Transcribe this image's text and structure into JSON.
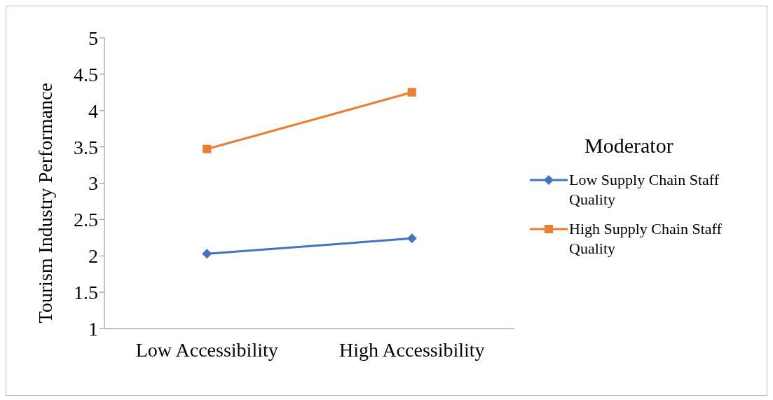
{
  "chart_data": {
    "type": "line",
    "ylabel": "Tourism Industry Performance",
    "legend_title": "Moderator",
    "categories": [
      "Low Accessibility",
      "High Accessibility"
    ],
    "series": [
      {
        "name": "Low Supply Chain Staff Quality",
        "color": "#4472c4",
        "values": [
          2.03,
          2.24
        ],
        "marker": "diamond"
      },
      {
        "name": "High Supply Chain Staff Quality",
        "color": "#ed7d31",
        "values": [
          3.47,
          4.25
        ],
        "marker": "square"
      }
    ],
    "ylim": [
      1,
      5
    ],
    "yticks": [
      1,
      1.5,
      2,
      2.5,
      3,
      3.5,
      4,
      4.5,
      5
    ],
    "grid": false,
    "legend": "right",
    "line_style": "solid"
  }
}
